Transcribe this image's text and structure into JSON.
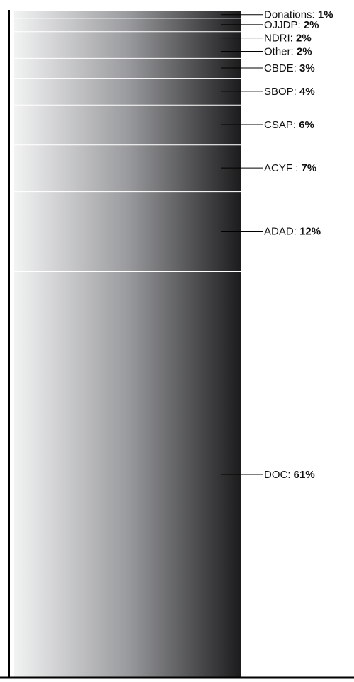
{
  "chart_data": {
    "type": "bar",
    "stacked": true,
    "orientation": "vertical",
    "unit": "%",
    "total": 100,
    "segments_bottom_to_top": [
      {
        "name": "DOC",
        "separator": ": ",
        "value": 61,
        "label": "61%"
      },
      {
        "name": "ADAD",
        "separator": ": ",
        "value": 12,
        "label": "12%"
      },
      {
        "name": "ACYF",
        "separator": " : ",
        "value": 7,
        "label": "7%"
      },
      {
        "name": "CSAP",
        "separator": ": ",
        "value": 6,
        "label": "6%"
      },
      {
        "name": "SBOP",
        "separator": ": ",
        "value": 4,
        "label": "4%"
      },
      {
        "name": "CBDE",
        "separator": ": ",
        "value": 3,
        "label": "3%"
      },
      {
        "name": "Other",
        "separator": ": ",
        "value": 2,
        "label": "2%"
      },
      {
        "name": "NDRI",
        "separator": ": ",
        "value": 2,
        "label": "2%"
      },
      {
        "name": "OJJDP",
        "separator": ": ",
        "value": 2,
        "label": "2%"
      },
      {
        "name": "Donations",
        "separator": ": ",
        "value": 1,
        "label": "1%"
      }
    ],
    "colors": {
      "gradient_start": "#f2f3f3",
      "gradient_end": "#1c1c1d",
      "separator": "#ffffff",
      "axis": "#000000",
      "text": "#111111"
    }
  }
}
